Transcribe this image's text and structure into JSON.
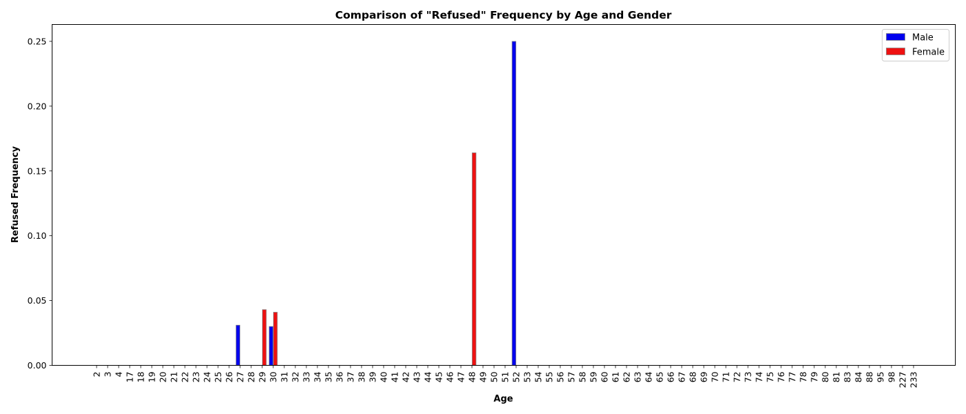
{
  "chart_data": {
    "type": "bar",
    "title": "Comparison of \"Refused\" Frequency by Age and Gender",
    "xlabel": "Age",
    "ylabel": "Refused Frequency",
    "ylim": [
      0,
      0.263
    ],
    "yticks": [
      "0.00",
      "0.05",
      "0.10",
      "0.15",
      "0.20",
      "0.25"
    ],
    "legend_position": "top-right",
    "grid": false,
    "categories": [
      "2",
      "3",
      "4",
      "17",
      "18",
      "19",
      "20",
      "21",
      "22",
      "23",
      "24",
      "25",
      "26",
      "27",
      "28",
      "29",
      "30",
      "31",
      "32",
      "33",
      "34",
      "35",
      "36",
      "37",
      "38",
      "39",
      "40",
      "41",
      "42",
      "43",
      "44",
      "45",
      "46",
      "47",
      "48",
      "49",
      "50",
      "51",
      "52",
      "53",
      "54",
      "55",
      "56",
      "57",
      "58",
      "59",
      "60",
      "61",
      "62",
      "63",
      "64",
      "65",
      "66",
      "67",
      "68",
      "69",
      "70",
      "71",
      "72",
      "73",
      "74",
      "75",
      "76",
      "77",
      "78",
      "79",
      "80",
      "81",
      "83",
      "84",
      "88",
      "95",
      "98",
      "227",
      "233"
    ],
    "series": [
      {
        "name": "Male",
        "color": "#0000ee",
        "values": [
          0,
          0,
          0,
          0,
          0,
          0,
          0,
          0,
          0,
          0,
          0,
          0,
          0,
          0.031,
          0,
          0,
          0.03,
          0,
          0,
          0,
          0,
          0,
          0,
          0,
          0,
          0,
          0,
          0,
          0,
          0,
          0,
          0,
          0,
          0,
          0,
          0,
          0,
          0,
          0.25,
          0,
          0,
          0,
          0,
          0,
          0,
          0,
          0,
          0,
          0,
          0,
          0,
          0,
          0,
          0,
          0,
          0,
          0,
          0,
          0,
          0,
          0,
          0,
          0,
          0,
          0,
          0,
          0,
          0,
          0,
          0,
          0,
          0,
          0,
          0,
          0
        ]
      },
      {
        "name": "Female",
        "color": "#ee1111",
        "values": [
          0,
          0,
          0,
          0,
          0,
          0,
          0,
          0,
          0,
          0,
          0,
          0,
          0,
          0,
          0,
          0.043,
          0.041,
          0,
          0,
          0,
          0,
          0,
          0,
          0,
          0,
          0,
          0,
          0,
          0,
          0,
          0,
          0,
          0,
          0,
          0.164,
          0,
          0,
          0,
          0,
          0,
          0,
          0,
          0,
          0,
          0,
          0,
          0,
          0,
          0,
          0,
          0,
          0,
          0,
          0,
          0,
          0,
          0,
          0,
          0,
          0,
          0,
          0,
          0,
          0,
          0,
          0,
          0,
          0,
          0,
          0,
          0,
          0,
          0,
          0,
          0
        ]
      }
    ]
  }
}
